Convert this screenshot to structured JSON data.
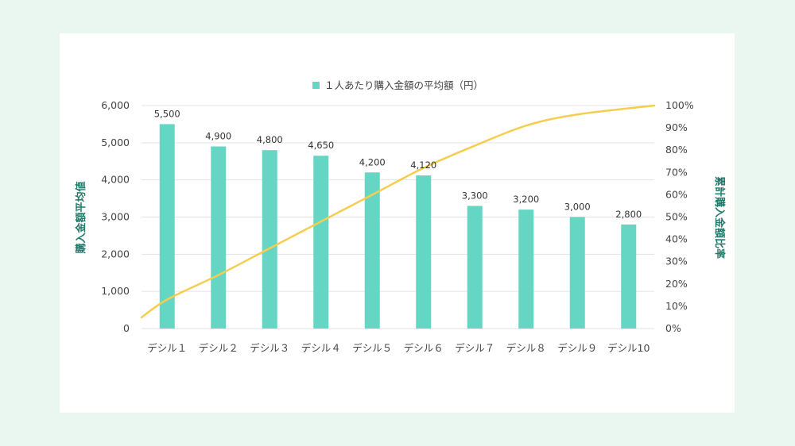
{
  "chart_data": {
    "type": "bar",
    "legend": {
      "label": "１人あたり購入金額の平均額（円）",
      "placement": "top-center"
    },
    "categories": [
      "デシル１",
      "デシル２",
      "デシル３",
      "デシル４",
      "デシル５",
      "デシル６",
      "デシル７",
      "デシル８",
      "デシル９",
      "デシル10"
    ],
    "series": [
      {
        "name": "１人あたり購入金額の平均額（円）",
        "type": "bar",
        "axis": "left",
        "values": [
          5500,
          4900,
          4800,
          4650,
          4200,
          4120,
          3300,
          3200,
          3000,
          2800
        ],
        "data_labels": [
          "5,500",
          "4,900",
          "4,800",
          "4,650",
          "4,200",
          "4,120",
          "3,300",
          "3,200",
          "3,000",
          "2,800"
        ]
      },
      {
        "type": "line",
        "axis": "right",
        "smooth": true,
        "values": [
          0.13,
          0.24,
          0.36,
          0.48,
          0.6,
          0.72,
          0.82,
          0.91,
          0.96,
          1.0
        ],
        "start_value": 0.05
      }
    ],
    "y_left": {
      "label": "購入金額平均値",
      "ylim": [
        0,
        6000
      ],
      "ticks": [
        "0",
        "1,000",
        "2,000",
        "3,000",
        "4,000",
        "5,000",
        "6,000"
      ]
    },
    "y_right": {
      "label": "累計購入金額比率",
      "ylim": [
        0,
        1
      ],
      "ticks": [
        "0%",
        "10%",
        "20%",
        "30%",
        "40%",
        "50%",
        "60%",
        "70%",
        "80%",
        "90%",
        "100%"
      ]
    },
    "grid": true,
    "colors": {
      "bar": "#66d6c4",
      "line": "#f5cd4f",
      "grid": "#e3e3e3",
      "axis_title": "#1f7a6a",
      "background": "#eaf6f0"
    }
  }
}
